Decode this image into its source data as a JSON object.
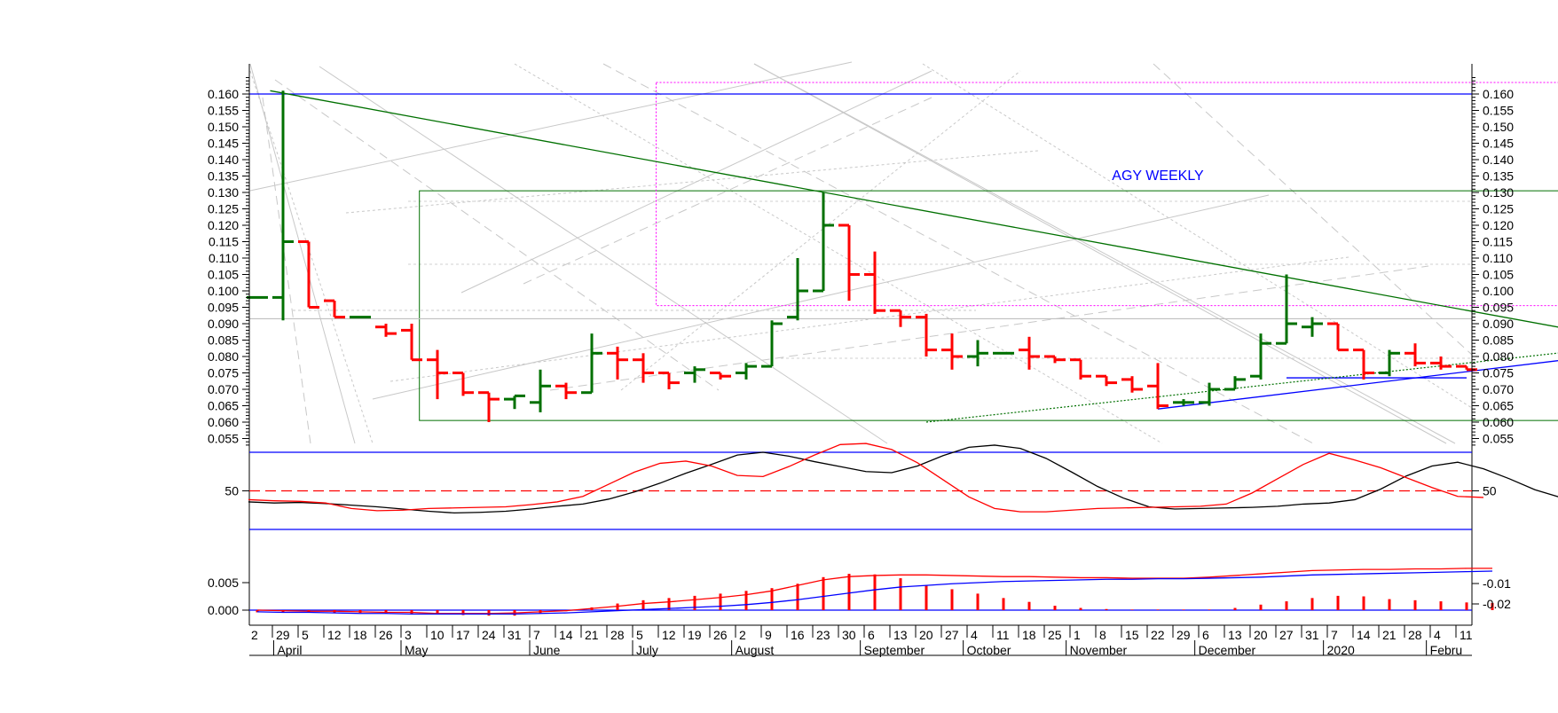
{
  "chart_data": [
    {
      "type": "ohlc",
      "title": "AGY WEEKLY",
      "ylim": [
        0.05,
        0.165
      ],
      "yticks": [
        0.055,
        0.06,
        0.065,
        0.07,
        0.075,
        0.08,
        0.085,
        0.09,
        0.095,
        0.1,
        0.105,
        0.11,
        0.115,
        0.12,
        0.125,
        0.13,
        0.135,
        0.14,
        0.145,
        0.15,
        0.155,
        0.16
      ],
      "ytick_labels": [
        "0.055",
        "0.060",
        "0.065",
        "0.070",
        "0.075",
        "0.080",
        "0.085",
        "0.090",
        "0.095",
        "0.100",
        "0.105",
        "0.110",
        "0.115",
        "0.120",
        "0.125",
        "0.130",
        "0.135",
        "0.140",
        "0.145",
        "0.150",
        "0.155",
        "0.160"
      ],
      "up_color": "#007000",
      "down_color": "#ff0000",
      "bars": [
        {
          "x": 0,
          "o": 0.098,
          "h": 0.098,
          "l": 0.098,
          "c": 0.098
        },
        {
          "x": 1,
          "o": 0.098,
          "h": 0.161,
          "l": 0.091,
          "c": 0.115
        },
        {
          "x": 2,
          "o": 0.115,
          "h": 0.115,
          "l": 0.095,
          "c": 0.095
        },
        {
          "x": 3,
          "o": 0.097,
          "h": 0.097,
          "l": 0.092,
          "c": 0.092
        },
        {
          "x": 4,
          "o": 0.092,
          "h": 0.092,
          "l": 0.092,
          "c": 0.092
        },
        {
          "x": 5,
          "o": 0.089,
          "h": 0.09,
          "l": 0.086,
          "c": 0.087
        },
        {
          "x": 6,
          "o": 0.088,
          "h": 0.09,
          "l": 0.079,
          "c": 0.079
        },
        {
          "x": 7,
          "o": 0.079,
          "h": 0.082,
          "l": 0.067,
          "c": 0.075
        },
        {
          "x": 8,
          "o": 0.075,
          "h": 0.075,
          "l": 0.068,
          "c": 0.069
        },
        {
          "x": 9,
          "o": 0.069,
          "h": 0.069,
          "l": 0.06,
          "c": 0.067
        },
        {
          "x": 10,
          "o": 0.067,
          "h": 0.068,
          "l": 0.064,
          "c": 0.068
        },
        {
          "x": 11,
          "o": 0.066,
          "h": 0.076,
          "l": 0.063,
          "c": 0.071
        },
        {
          "x": 12,
          "o": 0.071,
          "h": 0.072,
          "l": 0.067,
          "c": 0.069
        },
        {
          "x": 13,
          "o": 0.069,
          "h": 0.087,
          "l": 0.069,
          "c": 0.081
        },
        {
          "x": 14,
          "o": 0.081,
          "h": 0.083,
          "l": 0.073,
          "c": 0.079
        },
        {
          "x": 15,
          "o": 0.079,
          "h": 0.081,
          "l": 0.072,
          "c": 0.075
        },
        {
          "x": 16,
          "o": 0.075,
          "h": 0.075,
          "l": 0.07,
          "c": 0.072
        },
        {
          "x": 17,
          "o": 0.075,
          "h": 0.077,
          "l": 0.072,
          "c": 0.076
        },
        {
          "x": 18,
          "o": 0.075,
          "h": 0.075,
          "l": 0.073,
          "c": 0.074
        },
        {
          "x": 19,
          "o": 0.075,
          "h": 0.078,
          "l": 0.073,
          "c": 0.077
        },
        {
          "x": 20,
          "o": 0.077,
          "h": 0.091,
          "l": 0.077,
          "c": 0.09
        },
        {
          "x": 21,
          "o": 0.092,
          "h": 0.11,
          "l": 0.091,
          "c": 0.1
        },
        {
          "x": 22,
          "o": 0.1,
          "h": 0.13,
          "l": 0.1,
          "c": 0.12
        },
        {
          "x": 23,
          "o": 0.12,
          "h": 0.12,
          "l": 0.097,
          "c": 0.105
        },
        {
          "x": 24,
          "o": 0.105,
          "h": 0.112,
          "l": 0.093,
          "c": 0.094
        },
        {
          "x": 25,
          "o": 0.094,
          "h": 0.094,
          "l": 0.089,
          "c": 0.092
        },
        {
          "x": 26,
          "o": 0.092,
          "h": 0.093,
          "l": 0.08,
          "c": 0.082
        },
        {
          "x": 27,
          "o": 0.082,
          "h": 0.087,
          "l": 0.076,
          "c": 0.08
        },
        {
          "x": 28,
          "o": 0.08,
          "h": 0.085,
          "l": 0.077,
          "c": 0.081
        },
        {
          "x": 29,
          "o": 0.081,
          "h": 0.081,
          "l": 0.081,
          "c": 0.081
        },
        {
          "x": 30,
          "o": 0.082,
          "h": 0.086,
          "l": 0.076,
          "c": 0.08
        },
        {
          "x": 31,
          "o": 0.08,
          "h": 0.08,
          "l": 0.078,
          "c": 0.079
        },
        {
          "x": 32,
          "o": 0.079,
          "h": 0.079,
          "l": 0.073,
          "c": 0.074
        },
        {
          "x": 33,
          "o": 0.074,
          "h": 0.074,
          "l": 0.071,
          "c": 0.072
        },
        {
          "x": 34,
          "o": 0.073,
          "h": 0.074,
          "l": 0.069,
          "c": 0.07
        },
        {
          "x": 35,
          "o": 0.071,
          "h": 0.078,
          "l": 0.064,
          "c": 0.065
        },
        {
          "x": 36,
          "o": 0.066,
          "h": 0.067,
          "l": 0.065,
          "c": 0.066
        },
        {
          "x": 37,
          "o": 0.066,
          "h": 0.072,
          "l": 0.065,
          "c": 0.07
        },
        {
          "x": 38,
          "o": 0.07,
          "h": 0.074,
          "l": 0.07,
          "c": 0.073
        },
        {
          "x": 39,
          "o": 0.074,
          "h": 0.087,
          "l": 0.073,
          "c": 0.084
        },
        {
          "x": 40,
          "o": 0.084,
          "h": 0.105,
          "l": 0.084,
          "c": 0.09
        },
        {
          "x": 41,
          "o": 0.089,
          "h": 0.092,
          "l": 0.086,
          "c": 0.09
        },
        {
          "x": 42,
          "o": 0.09,
          "h": 0.09,
          "l": 0.082,
          "c": 0.082
        },
        {
          "x": 43,
          "o": 0.082,
          "h": 0.082,
          "l": 0.073,
          "c": 0.075
        },
        {
          "x": 44,
          "o": 0.075,
          "h": 0.082,
          "l": 0.074,
          "c": 0.081
        },
        {
          "x": 45,
          "o": 0.081,
          "h": 0.084,
          "l": 0.077,
          "c": 0.078
        },
        {
          "x": 46,
          "o": 0.078,
          "h": 0.08,
          "l": 0.076,
          "c": 0.077
        },
        {
          "x": 47,
          "o": 0.077,
          "h": 0.077,
          "l": 0.076,
          "c": 0.076
        }
      ],
      "horizontal_levels": [
        {
          "value": 0.16,
          "color": "#0000ff"
        },
        {
          "value": 0.0915,
          "color": "#c0c0c0"
        }
      ],
      "trendlines": [
        {
          "from": [
            0.5,
            0.161
          ],
          "to": [
            54,
            0.084
          ],
          "color": "#007000",
          "style": "solid"
        },
        {
          "from": [
            35,
            0.064
          ],
          "to": [
            54,
            0.082
          ],
          "color": "#0000ff",
          "style": "solid"
        },
        {
          "from": [
            40,
            0.0735
          ],
          "to": [
            47,
            0.0735
          ],
          "color": "#0000ff",
          "style": "solid"
        },
        {
          "from": [
            26,
            0.06
          ],
          "to": [
            54,
            0.084
          ],
          "color": "#007000",
          "style": "dotted"
        }
      ],
      "boxes": [
        {
          "x": [
            6.3,
            52.8
          ],
          "y": [
            0.0605,
            0.1305
          ],
          "color": "#007000",
          "style": "solid"
        },
        {
          "x": [
            15.5,
            54.8
          ],
          "y": [
            0.0955,
            0.1635
          ],
          "color": "#ff00ff",
          "style": "dotted"
        }
      ]
    },
    {
      "type": "line",
      "yticks": [
        50
      ],
      "ytick_labels": [
        "50"
      ],
      "ylim": [
        0,
        100
      ],
      "reference_lines": [
        {
          "value": 85,
          "color": "#0000ff",
          "style": "solid"
        },
        {
          "value": 50,
          "color": "#ff0000",
          "style": "dashed"
        },
        {
          "value": 15,
          "color": "#0000ff",
          "style": "solid"
        }
      ],
      "series": [
        {
          "color": "#000000",
          "values": [
            40,
            39,
            39.5,
            38.5,
            37,
            35.5,
            33.5,
            31.5,
            30,
            30.5,
            31.5,
            33.5,
            36,
            38,
            42.5,
            49,
            57,
            66,
            74,
            82.5,
            85,
            81.5,
            76.5,
            72,
            67.5,
            66.5,
            72.5,
            82,
            89.5,
            91.5,
            88.5,
            79.5,
            67,
            54,
            43.5,
            35.5,
            33.5,
            34,
            34.5,
            35,
            36,
            38,
            39,
            42,
            51.5,
            63.5,
            72.5,
            76,
            70,
            61,
            51,
            44,
            42
          ]
        },
        {
          "color": "#ff0000",
          "values": [
            42,
            41,
            40.5,
            39,
            34,
            32,
            32.5,
            34,
            34.5,
            35,
            35.5,
            37.5,
            40,
            45,
            56,
            67,
            75,
            77,
            72.5,
            64,
            63,
            72,
            82.5,
            92,
            93,
            87.5,
            75.5,
            60,
            44.5,
            34,
            31,
            31,
            32.5,
            34,
            34.5,
            35,
            35.5,
            36,
            38,
            48,
            61,
            74,
            84,
            78,
            71,
            62,
            53,
            45,
            44
          ]
        }
      ]
    },
    {
      "type": "bar",
      "yticks_left": [
        0.0,
        0.005
      ],
      "ytick_labels_left": [
        "0.000",
        "0.005"
      ],
      "yticks_right": [
        -0.02,
        -0.01
      ],
      "ytick_labels_right": [
        "-0.02",
        "-0.01"
      ],
      "ylim": [
        -0.0012,
        0.0088
      ],
      "bar_color": "#ff0000",
      "values": [
        -0.0004,
        -0.0004,
        -0.0004,
        -0.0005,
        -0.0005,
        -0.0006,
        -0.0007,
        -0.0008,
        -0.0009,
        -0.001,
        -0.001,
        -0.0006,
        -0.0002,
        0.0005,
        0.0012,
        0.0018,
        0.0022,
        0.0026,
        0.003,
        0.0035,
        0.004,
        0.0048,
        0.006,
        0.0066,
        0.0065,
        0.0058,
        0.0045,
        0.0038,
        0.003,
        0.0022,
        0.0015,
        0.0008,
        0.0004,
        0.0002,
        0.0001,
        0.0001,
        0.0001,
        0.0001,
        0.0004,
        0.001,
        0.0016,
        0.0022,
        0.0026,
        0.0025,
        0.002,
        0.0018,
        0.0016,
        0.0014,
        0.0013
      ],
      "series": [
        {
          "color": "#ff0000",
          "values": [
            0.0,
            -0.0001,
            -0.0002,
            -0.0002,
            -0.0003,
            -0.0004,
            -0.0004,
            -0.0006,
            -0.0006,
            -0.0006,
            -0.0005,
            -0.0003,
            -0.0001,
            0.0003,
            0.0007,
            0.0012,
            0.0015,
            0.0019,
            0.0023,
            0.0028,
            0.0035,
            0.0045,
            0.0055,
            0.0061,
            0.0063,
            0.0064,
            0.0064,
            0.0063,
            0.0062,
            0.0061,
            0.0061,
            0.006,
            0.0059,
            0.0059,
            0.0058,
            0.0058,
            0.0058,
            0.006,
            0.0063,
            0.0066,
            0.0069,
            0.0072,
            0.0073,
            0.0074,
            0.0074,
            0.0075,
            0.0075,
            0.0076,
            0.0076
          ]
        },
        {
          "color": "#0000ff",
          "values": [
            -0.0003,
            -0.0004,
            -0.0004,
            -0.0005,
            -0.0006,
            -0.0006,
            -0.0007,
            -0.0007,
            -0.0007,
            -0.0007,
            -0.0007,
            -0.0006,
            -0.0005,
            -0.0003,
            -0.0001,
            0.0001,
            0.0003,
            0.0005,
            0.0007,
            0.001,
            0.0014,
            0.0019,
            0.0025,
            0.0031,
            0.0037,
            0.0042,
            0.0045,
            0.0048,
            0.005,
            0.0052,
            0.0053,
            0.0054,
            0.0055,
            0.0056,
            0.0056,
            0.0057,
            0.0057,
            0.0058,
            0.0059,
            0.006,
            0.0062,
            0.0064,
            0.0065,
            0.0066,
            0.0067,
            0.0068,
            0.0069,
            0.007,
            0.0071
          ]
        }
      ]
    }
  ],
  "x_axis": {
    "first_label": "2",
    "day_labels": [
      "29",
      "5",
      "12",
      "18",
      "26",
      "3",
      "10",
      "17",
      "24",
      "31",
      "7",
      "14",
      "21",
      "28",
      "5",
      "12",
      "19",
      "26",
      "2",
      "9",
      "16",
      "23",
      "30",
      "6",
      "13",
      "20",
      "27",
      "4",
      "11",
      "18",
      "25",
      "1",
      "8",
      "15",
      "22",
      "29",
      "6",
      "13",
      "20",
      "27",
      "31",
      "7",
      "14",
      "21",
      "28",
      "4",
      "11"
    ],
    "months": [
      {
        "label": "April",
        "at": 1.05
      },
      {
        "label": "May",
        "at": 6.0
      },
      {
        "label": "June",
        "at": 11.0
      },
      {
        "label": "July",
        "at": 15.0
      },
      {
        "label": "August",
        "at": 18.85
      },
      {
        "label": "September",
        "at": 23.85
      },
      {
        "label": "October",
        "at": 27.85
      },
      {
        "label": "November",
        "at": 31.85
      },
      {
        "label": "December",
        "at": 36.85
      },
      {
        "label": "2020",
        "at": 41.85
      },
      {
        "label": "Febru",
        "at": 45.85
      }
    ]
  }
}
